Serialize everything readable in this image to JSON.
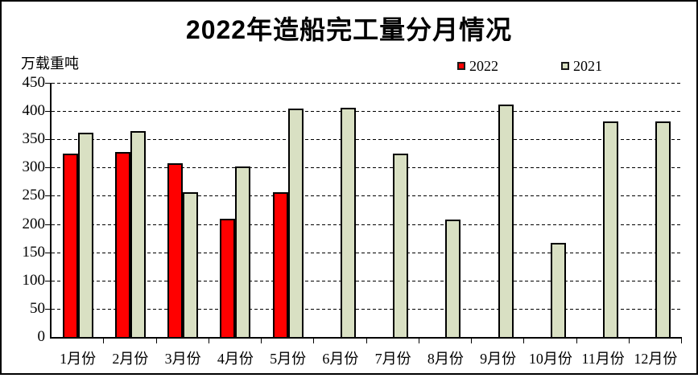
{
  "chart": {
    "title": "2022年造船完工量分月情况",
    "unit_label": "万载重吨"
  },
  "chart_data": {
    "type": "bar",
    "title": "2022年造船完工量分月情况",
    "ylabel": "万载重吨",
    "xlabel": "",
    "ylim": [
      0,
      450
    ],
    "ytick_step": 50,
    "grid": true,
    "grid_style": "dashed",
    "legend_position": "top-right",
    "categories": [
      "1月份",
      "2月份",
      "3月份",
      "4月份",
      "5月份",
      "6月份",
      "7月份",
      "8月份",
      "9月份",
      "10月份",
      "11月份",
      "12月份"
    ],
    "series": [
      {
        "name": "2022",
        "color": "#ff0000",
        "values": [
          325,
          328,
          308,
          210,
          257,
          null,
          null,
          null,
          null,
          null,
          null,
          null
        ]
      },
      {
        "name": "2021",
        "color": "#d9e0c3",
        "values": [
          362,
          364,
          256,
          302,
          404,
          406,
          325,
          208,
          412,
          166,
          381,
          382
        ]
      }
    ],
    "bar_border_color": "#000000",
    "colors": {
      "series_2022": "#ff0000",
      "series_2021": "#d9e0c3",
      "axis": "#000000",
      "background": "#ffffff"
    }
  }
}
